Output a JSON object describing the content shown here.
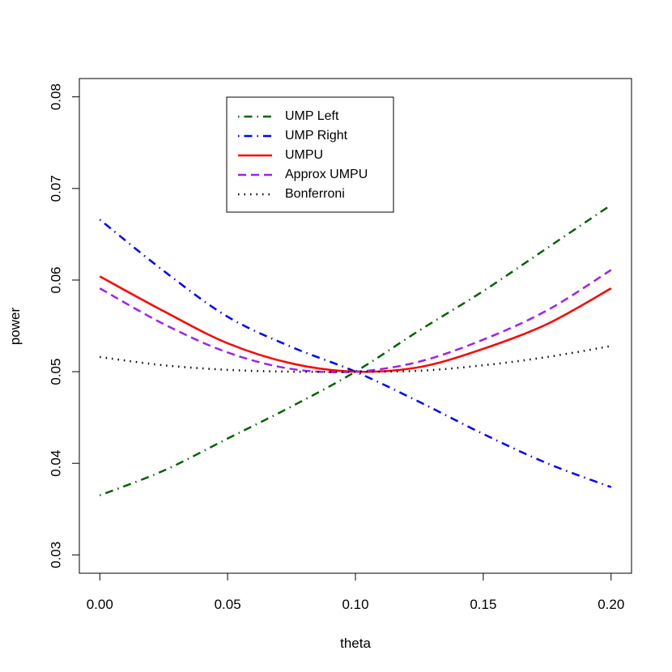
{
  "chart_data": {
    "type": "line",
    "xlabel": "theta",
    "ylabel": "power",
    "xlim": [
      -0.008,
      0.208
    ],
    "ylim": [
      0.028,
      0.082
    ],
    "xticks": [
      "0.00",
      "0.05",
      "0.10",
      "0.15",
      "0.20"
    ],
    "xtick_values": [
      0.0,
      0.05,
      0.1,
      0.15,
      0.2
    ],
    "yticks": [
      "0.03",
      "0.04",
      "0.05",
      "0.06",
      "0.07",
      "0.08"
    ],
    "ytick_values": [
      0.03,
      0.04,
      0.05,
      0.06,
      0.07,
      0.08
    ],
    "grid": false,
    "legend_position": "top-center",
    "x": [
      0.0,
      0.025,
      0.05,
      0.075,
      0.1,
      0.125,
      0.15,
      0.175,
      0.2
    ],
    "series": [
      {
        "name": "UMP Left",
        "color": "#006400",
        "dash": "dotdash",
        "values": [
          0.0365,
          0.0392,
          0.0427,
          0.0462,
          0.05,
          0.0545,
          0.0588,
          0.0635,
          0.0682
        ]
      },
      {
        "name": "UMP Right",
        "color": "#0000ff",
        "dash": "dotdash",
        "values": [
          0.0666,
          0.061,
          0.056,
          0.0527,
          0.05,
          0.0467,
          0.0432,
          0.04,
          0.0374
        ]
      },
      {
        "name": "UMPU",
        "color": "#ff0000",
        "dash": "solid",
        "values": [
          0.0604,
          0.0566,
          0.0531,
          0.0509,
          0.05,
          0.0505,
          0.0525,
          0.0552,
          0.0591
        ]
      },
      {
        "name": "Approx UMPU",
        "color": "#a020f0",
        "dash": "dashed",
        "values": [
          0.0591,
          0.0552,
          0.0521,
          0.0503,
          0.05,
          0.0511,
          0.0535,
          0.0567,
          0.0611
        ]
      },
      {
        "name": "Bonferroni",
        "color": "#000000",
        "dash": "dotted",
        "values": [
          0.0516,
          0.0507,
          0.0502,
          0.05,
          0.05,
          0.0501,
          0.0507,
          0.0516,
          0.0528
        ]
      }
    ]
  }
}
